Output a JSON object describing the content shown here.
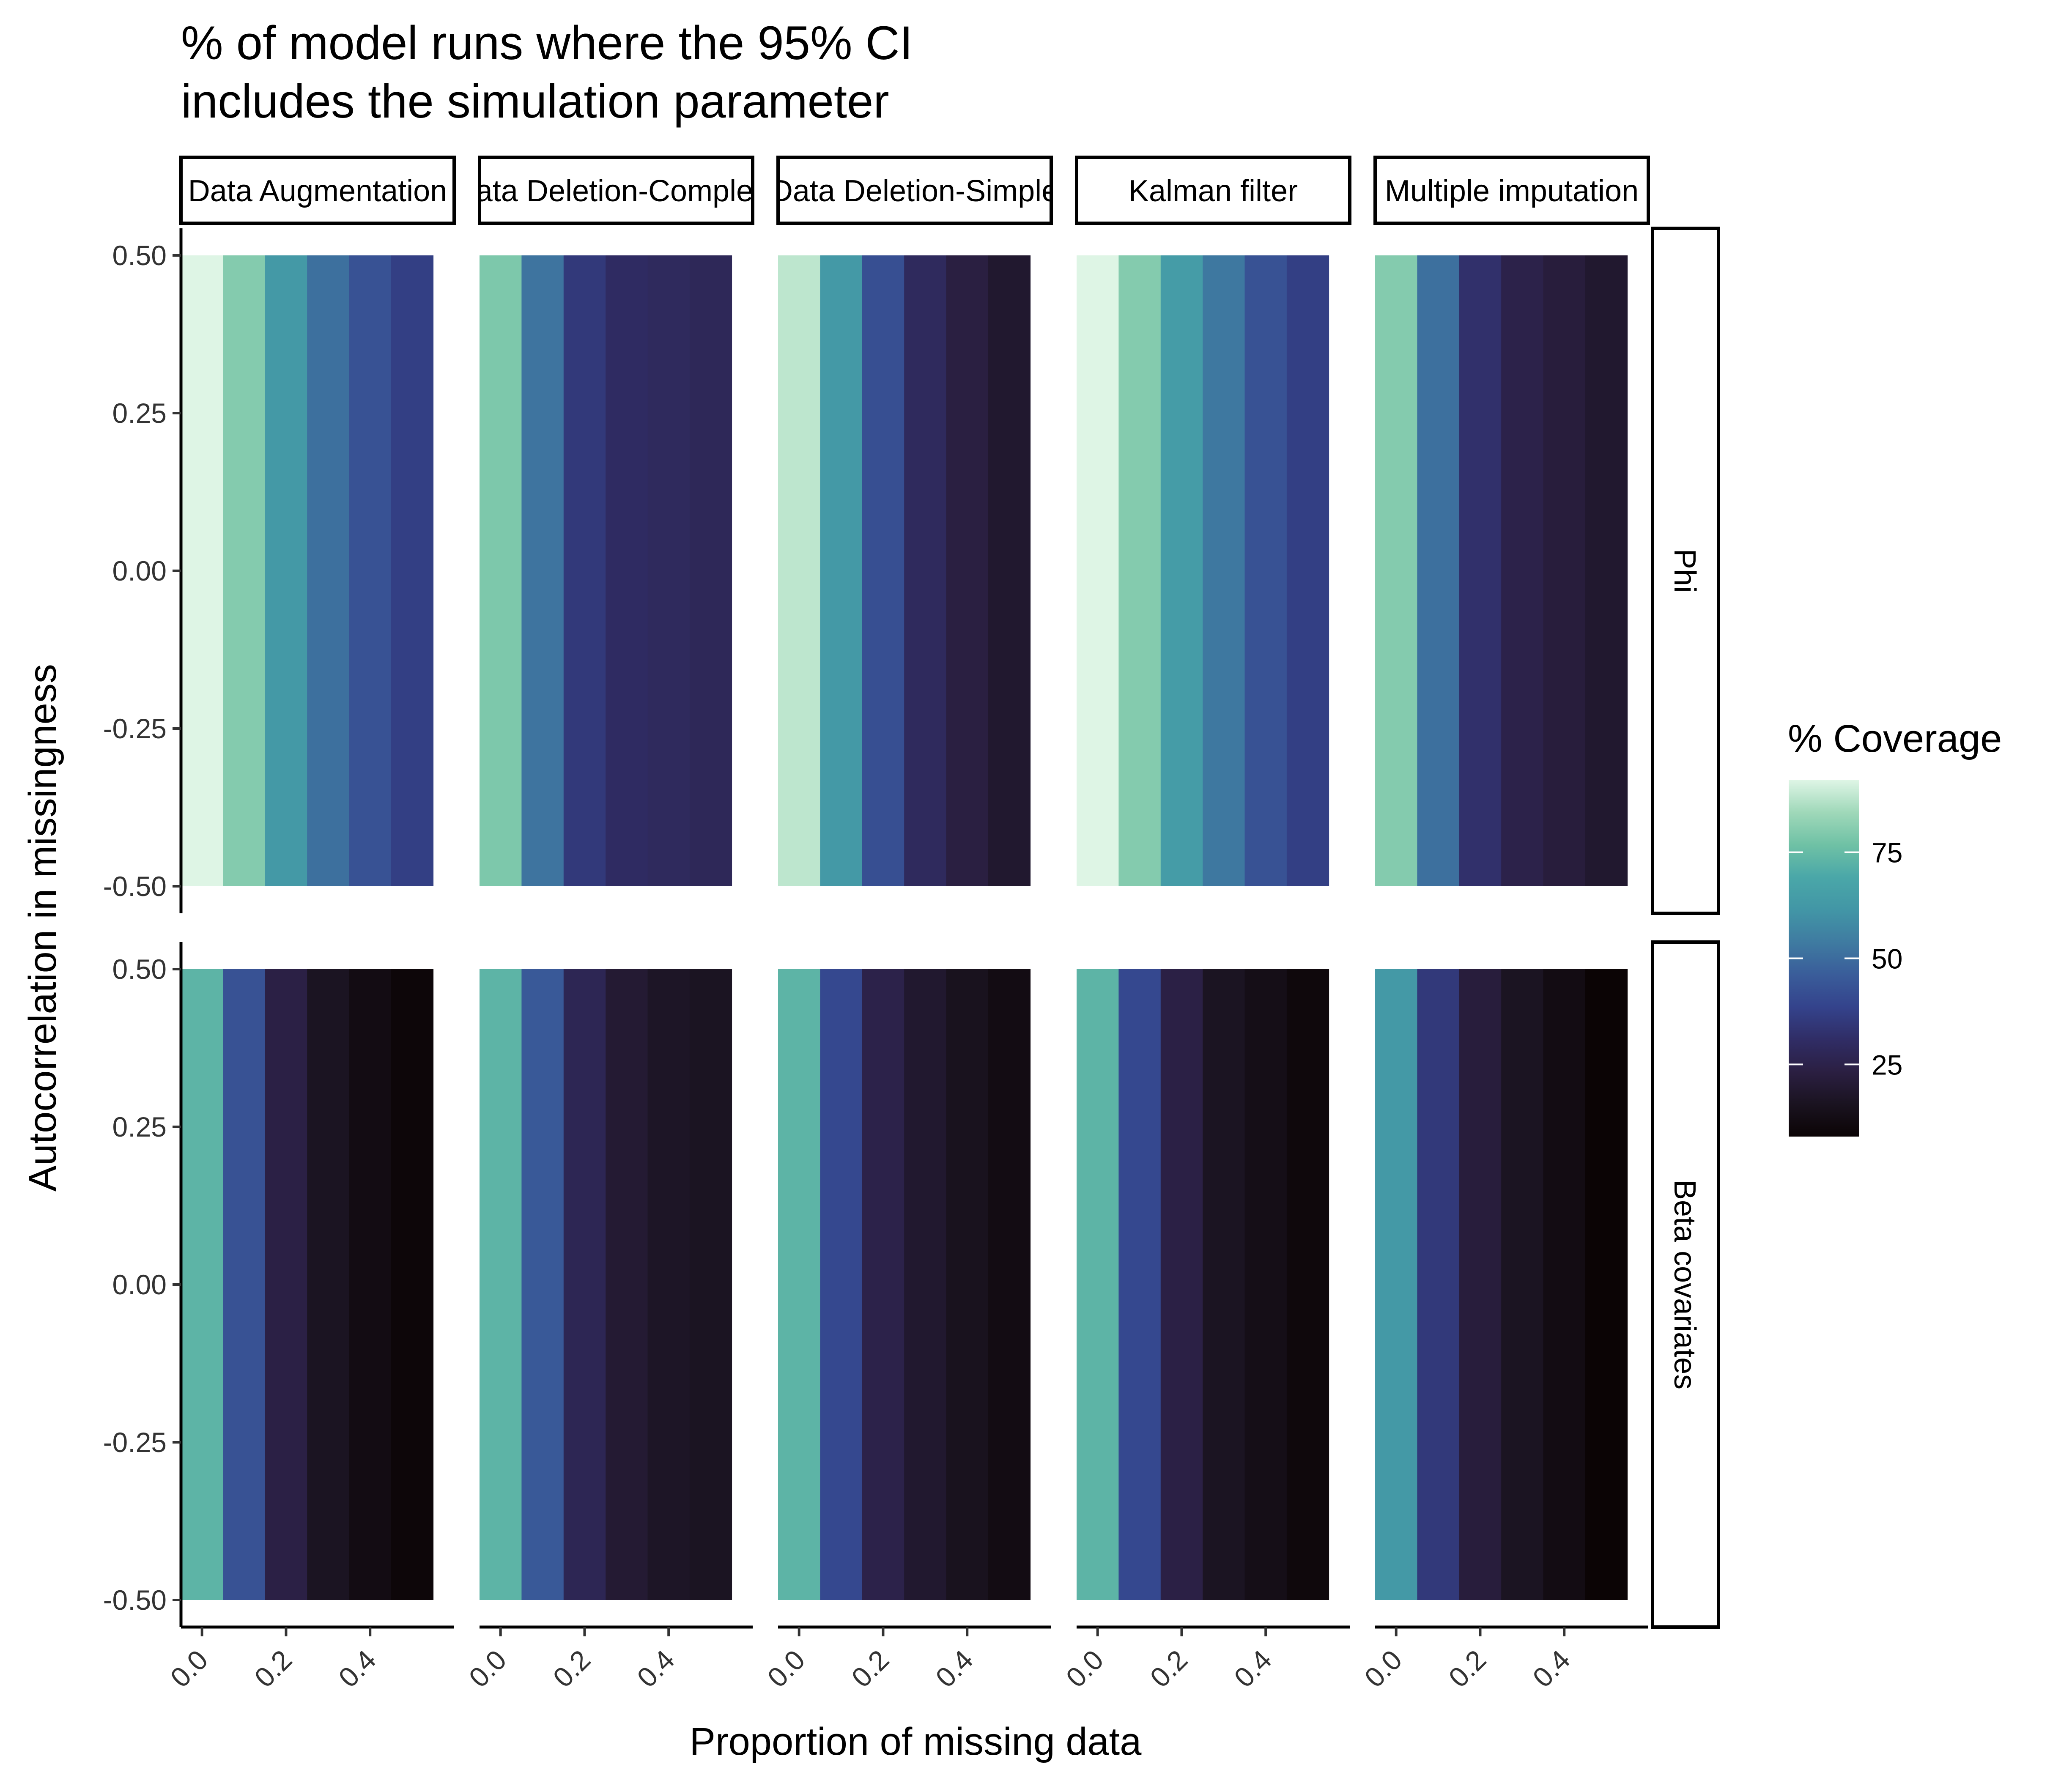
{
  "chart_data": {
    "type": "heatmap",
    "title": "% of model runs where the 95% CI\nincludes the simulation parameter",
    "xlabel": "Proportion of missing data",
    "ylabel": "Autocorrelation in missingness",
    "x": [
      0.0,
      0.1,
      0.2,
      0.3,
      0.4,
      0.5
    ],
    "x_ticks": [
      "0.0",
      "0.2",
      "0.4"
    ],
    "x_tick_values": [
      0.0,
      0.2,
      0.4
    ],
    "y_ticks": [
      "0.50",
      "0.25",
      "0.00",
      "-0.25",
      "-0.50"
    ],
    "y_tick_values": [
      0.5,
      0.25,
      0.0,
      -0.25,
      -0.5
    ],
    "ylim": [
      -0.5,
      0.5
    ],
    "column_facets": [
      "Data Augmentation",
      "Data Deletion-Complete",
      "Data Deletion-Simple",
      "Kalman filter",
      "Multiple imputation"
    ],
    "row_facets": [
      "Phi",
      "Beta covariates"
    ],
    "values": {
      "Phi": {
        "Data Augmentation": [
          92,
          80,
          63,
          51,
          43,
          37
        ],
        "Data Deletion-Complete": [
          79,
          52,
          35,
          30,
          29,
          28
        ],
        "Data Deletion-Simple": [
          88,
          63,
          42,
          29,
          23,
          19
        ],
        "Kalman filter": [
          92,
          80,
          64,
          53,
          43,
          37
        ],
        "Multiple imputation": [
          80,
          51,
          32,
          25,
          22,
          19
        ]
      },
      "Beta covariates": {
        "Data Augmentation": [
          73,
          43,
          24,
          16,
          12,
          9
        ],
        "Data Deletion-Complete": [
          73,
          45,
          27,
          20,
          17,
          16
        ],
        "Data Deletion-Simple": [
          73,
          40,
          25,
          19,
          15,
          12
        ],
        "Kalman filter": [
          73,
          40,
          24,
          16,
          13,
          10
        ],
        "Multiple imputation": [
          63,
          35,
          22,
          16,
          12,
          8
        ]
      }
    },
    "legend": {
      "title": "% Coverage",
      "breaks": [
        75,
        50,
        25
      ],
      "range": [
        8,
        92
      ],
      "position": "right"
    },
    "colorscale": [
      "#0b0405",
      "#1a1320",
      "#2b1f42",
      "#302d66",
      "#34438c",
      "#3a5d9a",
      "#3f7ba1",
      "#4296a6",
      "#4aa7a8",
      "#6fc1a5",
      "#9fd8b9",
      "#def5e5"
    ],
    "grid": false
  }
}
